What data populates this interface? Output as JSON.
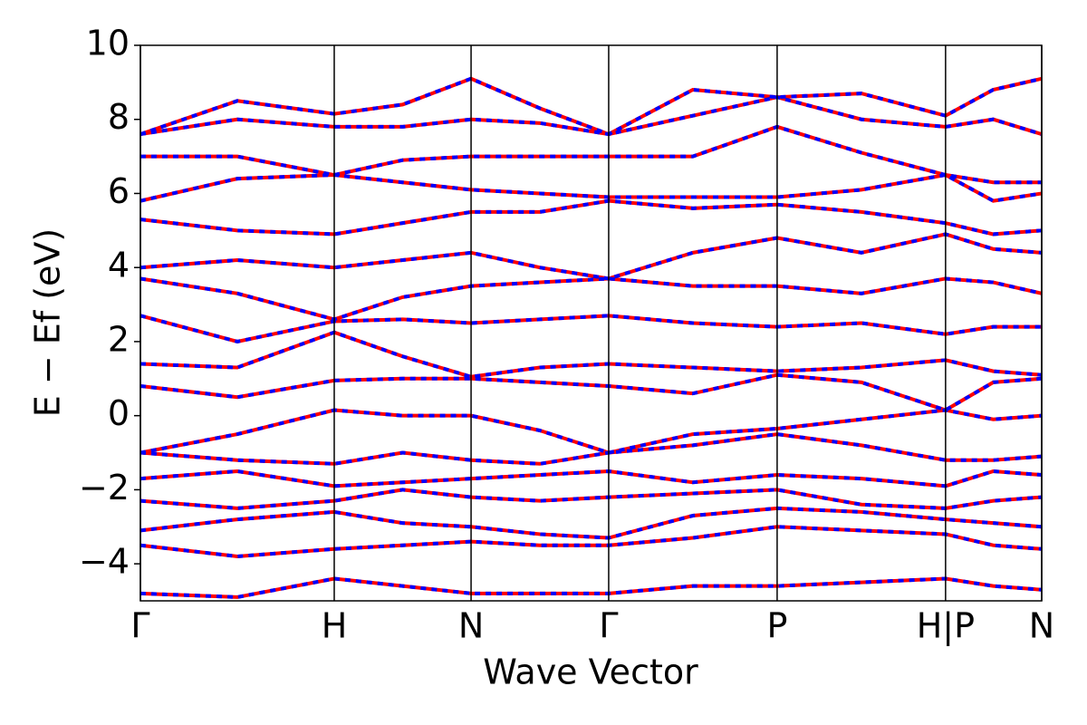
{
  "chart_data": {
    "type": "band-structure",
    "xlabel": "Wave Vector",
    "ylabel": "E − Ef (eV)",
    "x": [
      0,
      0.5,
      1,
      1.353,
      1.706,
      2.061,
      2.416,
      2.85,
      3.285,
      3.72,
      4.154,
      4.4,
      4.65
    ],
    "xlim": [
      0,
      4.65
    ],
    "xticks": [
      {
        "value": 0,
        "label": "Γ"
      },
      {
        "value": 1,
        "label": "H"
      },
      {
        "value": 1.706,
        "label": "N"
      },
      {
        "value": 2.416,
        "label": "Γ"
      },
      {
        "value": 3.285,
        "label": "P"
      },
      {
        "value": 4.154,
        "label": "H|P"
      },
      {
        "value": 4.65,
        "label": "N"
      }
    ],
    "ylim": [
      -5,
      10
    ],
    "yticks": [
      {
        "value": -4,
        "label": "−4"
      },
      {
        "value": -2,
        "label": "−2"
      },
      0,
      2,
      4,
      6,
      8,
      10
    ],
    "series": [
      {
        "color": "#ff0000",
        "dashed": false,
        "bands": [
          [
            -4.8,
            -4.9,
            -4.4,
            -4.6,
            -4.8,
            -4.8,
            -4.8,
            -4.6,
            -4.6,
            -4.5,
            -4.4,
            -4.6,
            -4.7
          ],
          [
            -3.5,
            -3.8,
            -3.6,
            -3.5,
            -3.4,
            -3.5,
            -3.5,
            -3.3,
            -3.0,
            -3.1,
            -3.2,
            -3.5,
            -3.6
          ],
          [
            -3.1,
            -2.8,
            -2.6,
            -2.9,
            -3.0,
            -3.2,
            -3.3,
            -2.7,
            -2.5,
            -2.6,
            -2.8,
            -2.9,
            -3.0
          ],
          [
            -2.3,
            -2.5,
            -2.3,
            -2.0,
            -2.2,
            -2.3,
            -2.2,
            -2.1,
            -2.0,
            -2.4,
            -2.5,
            -2.3,
            -2.2
          ],
          [
            -1.7,
            -1.5,
            -1.9,
            -1.8,
            -1.7,
            -1.6,
            -1.5,
            -1.8,
            -1.6,
            -1.7,
            -1.9,
            -1.5,
            -1.6
          ],
          [
            -1.0,
            -1.2,
            -1.3,
            -1.0,
            -1.2,
            -1.3,
            -1.0,
            -0.8,
            -0.5,
            -0.8,
            -1.2,
            -1.2,
            -1.1
          ],
          [
            -1.0,
            -0.5,
            0.15,
            0.0,
            0.0,
            -0.4,
            -1.0,
            -0.5,
            -0.35,
            -0.1,
            0.15,
            -0.1,
            0.0
          ],
          [
            0.8,
            0.5,
            0.95,
            1.0,
            1.0,
            0.9,
            0.8,
            0.6,
            1.1,
            0.9,
            0.15,
            0.9,
            1.0
          ],
          [
            1.4,
            1.3,
            2.25,
            1.6,
            1.05,
            1.3,
            1.4,
            1.3,
            1.2,
            1.3,
            1.5,
            1.2,
            1.1
          ],
          [
            2.7,
            2.0,
            2.55,
            2.6,
            2.5,
            2.6,
            2.7,
            2.5,
            2.4,
            2.5,
            2.2,
            2.4,
            2.4
          ],
          [
            3.7,
            3.3,
            2.6,
            3.2,
            3.5,
            3.6,
            3.7,
            3.5,
            3.5,
            3.3,
            3.7,
            3.6,
            3.3
          ],
          [
            4.0,
            4.2,
            4.0,
            4.2,
            4.4,
            4.0,
            3.7,
            4.4,
            4.8,
            4.4,
            4.9,
            4.5,
            4.4
          ],
          [
            5.3,
            5.0,
            4.9,
            5.2,
            5.5,
            5.5,
            5.8,
            5.6,
            5.7,
            5.5,
            5.2,
            4.9,
            5.0
          ],
          [
            5.8,
            6.4,
            6.5,
            6.3,
            6.1,
            6.0,
            5.9,
            5.9,
            5.9,
            6.1,
            6.5,
            5.8,
            6.0
          ],
          [
            7.0,
            7.0,
            6.5,
            6.9,
            7.0,
            7.0,
            7.0,
            7.0,
            7.8,
            7.1,
            6.5,
            6.3,
            6.3
          ],
          [
            7.6,
            8.0,
            7.8,
            7.8,
            8.0,
            7.9,
            7.6,
            8.1,
            8.6,
            8.0,
            7.8,
            8.0,
            7.6
          ],
          [
            7.6,
            8.5,
            8.15,
            8.4,
            9.1,
            8.3,
            7.6,
            8.8,
            8.6,
            8.7,
            8.1,
            8.8,
            9.1
          ]
        ]
      },
      {
        "color": "#0000ff",
        "dashed": true,
        "bands": [
          [
            -4.8,
            -4.9,
            -4.4,
            -4.6,
            -4.8,
            -4.8,
            -4.8,
            -4.6,
            -4.6,
            -4.5,
            -4.4,
            -4.6,
            -4.7
          ],
          [
            -3.5,
            -3.8,
            -3.6,
            -3.5,
            -3.4,
            -3.5,
            -3.5,
            -3.3,
            -3.0,
            -3.1,
            -3.2,
            -3.5,
            -3.6
          ],
          [
            -3.1,
            -2.8,
            -2.6,
            -2.9,
            -3.0,
            -3.2,
            -3.3,
            -2.7,
            -2.5,
            -2.6,
            -2.8,
            -2.9,
            -3.0
          ],
          [
            -2.3,
            -2.5,
            -2.3,
            -2.0,
            -2.2,
            -2.3,
            -2.2,
            -2.1,
            -2.0,
            -2.4,
            -2.5,
            -2.3,
            -2.2
          ],
          [
            -1.7,
            -1.5,
            -1.9,
            -1.8,
            -1.7,
            -1.6,
            -1.5,
            -1.8,
            -1.6,
            -1.7,
            -1.9,
            -1.5,
            -1.6
          ],
          [
            -1.0,
            -1.2,
            -1.3,
            -1.0,
            -1.2,
            -1.3,
            -1.0,
            -0.8,
            -0.5,
            -0.8,
            -1.2,
            -1.2,
            -1.1
          ],
          [
            -1.0,
            -0.5,
            0.15,
            0.0,
            0.0,
            -0.4,
            -1.0,
            -0.5,
            -0.35,
            -0.1,
            0.15,
            -0.1,
            0.0
          ],
          [
            0.8,
            0.5,
            0.95,
            1.0,
            1.0,
            0.9,
            0.8,
            0.6,
            1.1,
            0.9,
            0.15,
            0.9,
            1.0
          ],
          [
            1.4,
            1.3,
            2.25,
            1.6,
            1.05,
            1.3,
            1.4,
            1.3,
            1.2,
            1.3,
            1.5,
            1.2,
            1.1
          ],
          [
            2.7,
            2.0,
            2.55,
            2.6,
            2.5,
            2.6,
            2.7,
            2.5,
            2.4,
            2.5,
            2.2,
            2.4,
            2.4
          ],
          [
            3.7,
            3.3,
            2.6,
            3.2,
            3.5,
            3.6,
            3.7,
            3.5,
            3.5,
            3.3,
            3.7,
            3.6,
            3.3
          ],
          [
            4.0,
            4.2,
            4.0,
            4.2,
            4.4,
            4.0,
            3.7,
            4.4,
            4.8,
            4.4,
            4.9,
            4.5,
            4.4
          ],
          [
            5.3,
            5.0,
            4.9,
            5.2,
            5.5,
            5.5,
            5.8,
            5.6,
            5.7,
            5.5,
            5.2,
            4.9,
            5.0
          ],
          [
            5.8,
            6.4,
            6.5,
            6.3,
            6.1,
            6.0,
            5.9,
            5.9,
            5.9,
            6.1,
            6.5,
            5.8,
            6.0
          ],
          [
            7.0,
            7.0,
            6.5,
            6.9,
            7.0,
            7.0,
            7.0,
            7.0,
            7.8,
            7.1,
            6.5,
            6.3,
            6.3
          ],
          [
            7.6,
            8.0,
            7.8,
            7.8,
            8.0,
            7.9,
            7.6,
            8.1,
            8.6,
            8.0,
            7.8,
            8.0,
            7.6
          ],
          [
            7.6,
            8.5,
            8.15,
            8.4,
            9.1,
            8.3,
            7.6,
            8.8,
            8.6,
            8.7,
            8.1,
            8.8,
            9.1
          ]
        ]
      }
    ]
  }
}
